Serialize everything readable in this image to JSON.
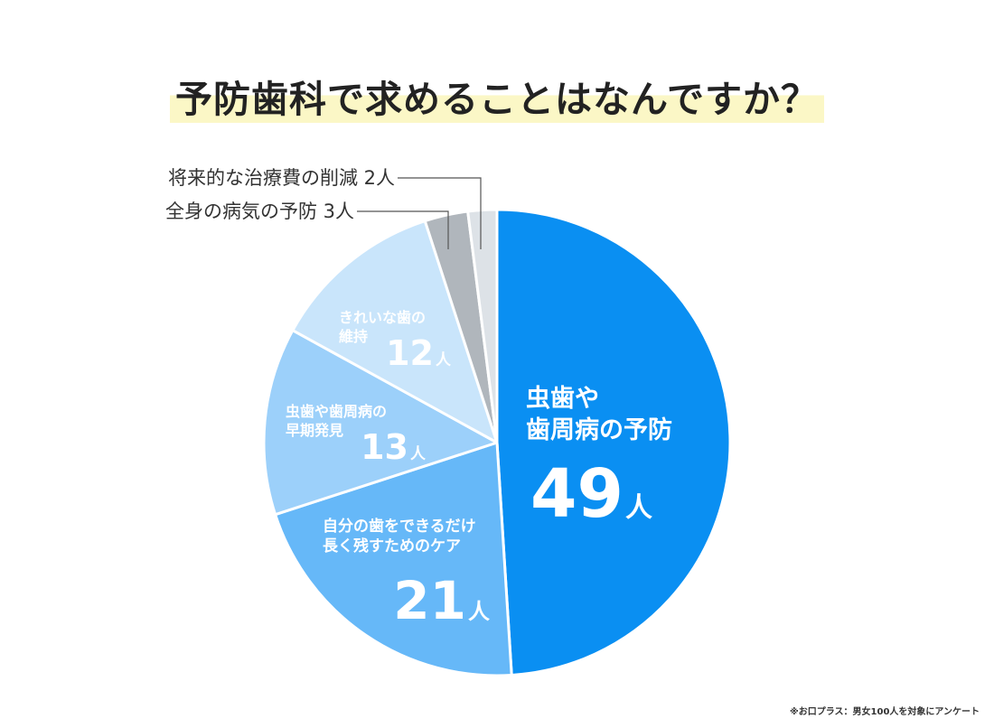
{
  "title": "予防歯科で求めることはなんですか？",
  "note": "※お口プラス：男女100人を対象にアンケート",
  "chart_data": {
    "type": "pie",
    "unit": "人",
    "total": 100,
    "slices": [
      {
        "lines": [
          "虫歯や",
          "歯周病の予防"
        ],
        "value": 49,
        "color": "#0a8ff2"
      },
      {
        "lines": [
          "自分の歯をできるだけ",
          "長く残すためのケア"
        ],
        "value": 21,
        "color": "#66b8f8"
      },
      {
        "lines": [
          "虫歯や歯周病の",
          "早期発見"
        ],
        "value": 13,
        "color": "#9cd0fa"
      },
      {
        "lines": [
          "きれいな歯の",
          "維持"
        ],
        "value": 12,
        "color": "#c9e5fb"
      },
      {
        "label": "全身の病気の予防 3人",
        "value": 3,
        "color": "#b0b6bc"
      },
      {
        "label": "将来的な治療費の削減 2人",
        "value": 2,
        "color": "#dde2e7"
      }
    ]
  }
}
